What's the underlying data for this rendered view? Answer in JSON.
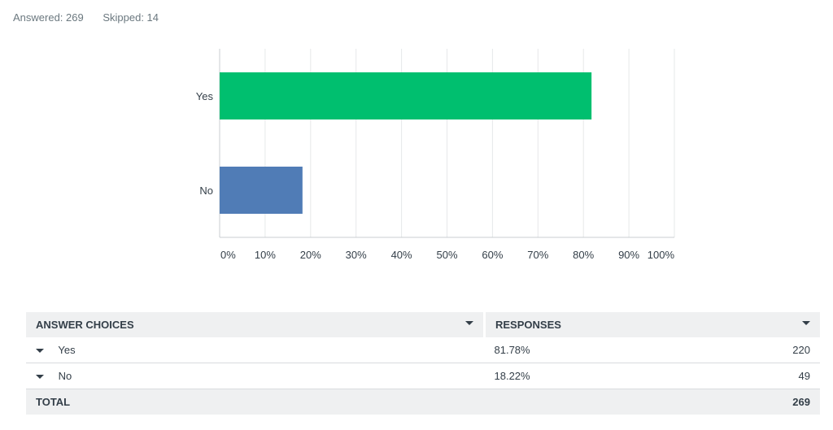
{
  "summary": {
    "answered": "Answered: 269",
    "skipped": "Skipped: 14"
  },
  "chart_data": {
    "type": "bar",
    "orientation": "horizontal",
    "categories": [
      "Yes",
      "No"
    ],
    "values": [
      81.78,
      18.22
    ],
    "colors": [
      "#00bf6f",
      "#507cb6"
    ],
    "xlim": [
      0,
      100
    ],
    "x_ticks": [
      "0%",
      "10%",
      "20%",
      "30%",
      "40%",
      "50%",
      "60%",
      "70%",
      "80%",
      "90%",
      "100%"
    ],
    "grid": true
  },
  "table": {
    "headers": {
      "choices": "ANSWER CHOICES",
      "responses": "RESPONSES"
    },
    "rows": [
      {
        "label": "Yes",
        "percent": "81.78%",
        "count": "220"
      },
      {
        "label": "No",
        "percent": "18.22%",
        "count": "49"
      }
    ],
    "total": {
      "label": "TOTAL",
      "count": "269"
    }
  }
}
